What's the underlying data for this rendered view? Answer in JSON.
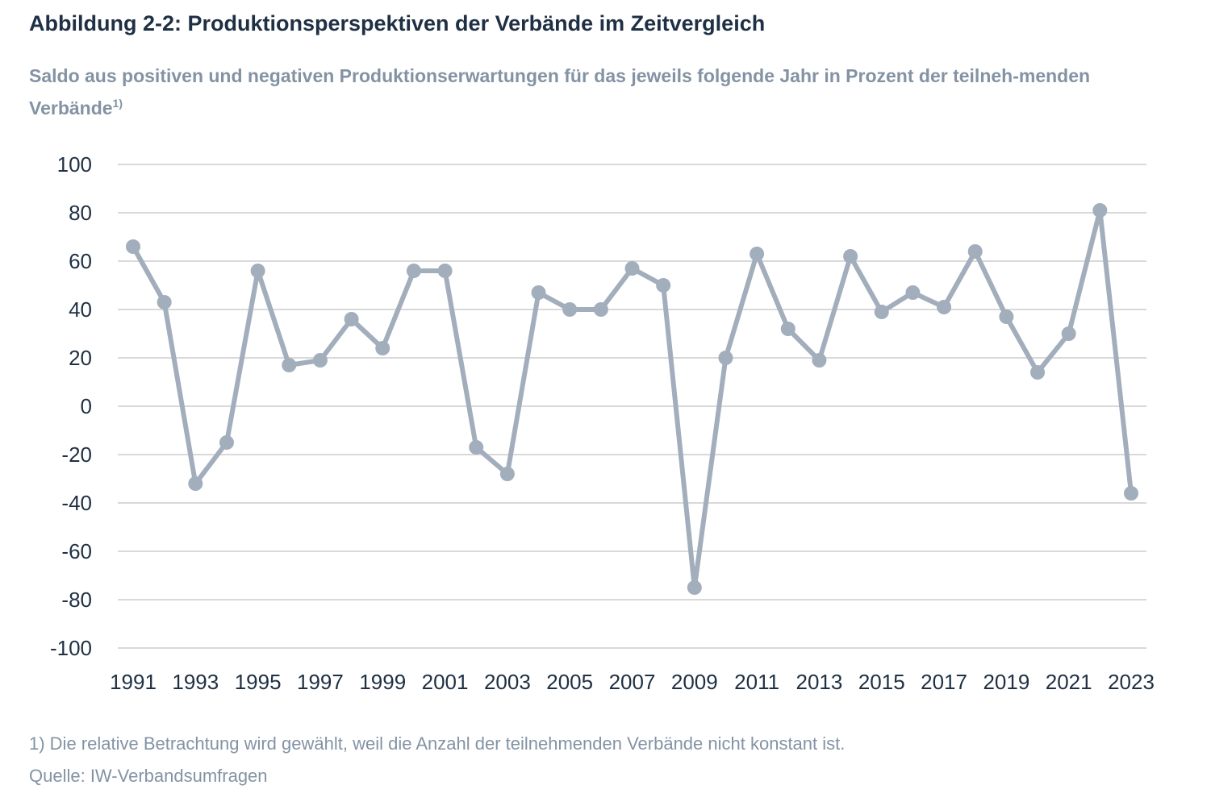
{
  "figure": {
    "title": "Abbildung 2-2: Produktionsperspektiven der Verbände im Zeitvergleich",
    "subtitle_main": "Saldo aus positiven und negativen Produktionserwartungen für das jeweils folgende Jahr in Prozent der teilneh-menden Verbände",
    "subtitle_note": "1)",
    "footnote": "1) Die relative Betrachtung wird gewählt, weil die Anzahl der teilnehmenden Verbände nicht konstant ist.",
    "source": "Quelle: IW-Verbandsumfragen"
  },
  "colors": {
    "series": "#a3aebc",
    "grid": "#d9d9d9",
    "text": "#1f3044",
    "muted": "#8393a4"
  },
  "chart_data": {
    "type": "line",
    "title": "Abbildung 2-2: Produktionsperspektiven der Verbände im Zeitvergleich",
    "xlabel": "",
    "ylabel": "",
    "ylim": [
      -100,
      100
    ],
    "yticks": [
      100,
      80,
      60,
      40,
      20,
      0,
      -20,
      -40,
      -60,
      -80,
      -100
    ],
    "xticks": [
      1991,
      1993,
      1995,
      1997,
      1999,
      2001,
      2003,
      2005,
      2007,
      2009,
      2011,
      2013,
      2015,
      2017,
      2019,
      2021,
      2023
    ],
    "grid": true,
    "x": [
      1991,
      1992,
      1993,
      1994,
      1995,
      1996,
      1997,
      1998,
      1999,
      2000,
      2001,
      2002,
      2003,
      2004,
      2005,
      2006,
      2007,
      2008,
      2009,
      2010,
      2011,
      2012,
      2013,
      2014,
      2015,
      2016,
      2017,
      2018,
      2019,
      2020,
      2021,
      2022,
      2023
    ],
    "series": [
      {
        "name": "Saldo",
        "values": [
          66,
          43,
          -32,
          -15,
          56,
          17,
          19,
          36,
          24,
          56,
          56,
          -17,
          -28,
          47,
          40,
          40,
          57,
          50,
          -75,
          20,
          63,
          32,
          19,
          62,
          39,
          47,
          41,
          64,
          37,
          14,
          30,
          81,
          -36
        ]
      }
    ]
  }
}
